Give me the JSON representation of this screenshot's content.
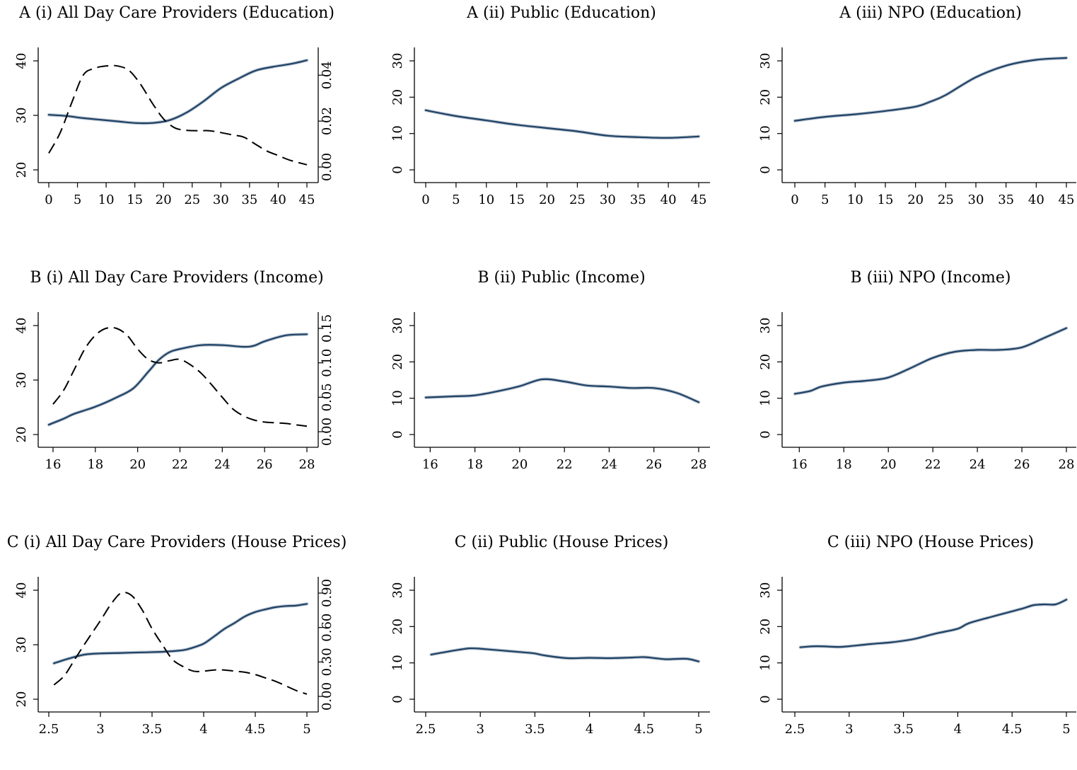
{
  "chart_data": [
    {
      "panel": "A-i",
      "type": "line",
      "title": "A (i) All Day Care Providers (Education)",
      "xlim": [
        0,
        45
      ],
      "ylim": [
        20,
        40
      ],
      "y2lim": [
        0,
        0.045
      ],
      "xticks": [
        "0",
        "5",
        "10",
        "15",
        "20",
        "25",
        "30",
        "35",
        "40",
        "45"
      ],
      "yticks": [
        "20",
        "30",
        "40"
      ],
      "y2ticks": [
        "0.00",
        "0.02",
        "0.04"
      ],
      "series": [
        {
          "style": "solid",
          "axis": "left",
          "x": [
            0,
            3,
            6,
            9,
            12,
            15,
            18,
            21,
            24,
            27,
            30,
            33,
            36,
            39,
            42,
            45
          ],
          "y": [
            30.1,
            29.9,
            29.5,
            29.2,
            28.9,
            28.6,
            28.6,
            29.1,
            30.5,
            32.6,
            35.0,
            36.7,
            38.2,
            38.9,
            39.4,
            40.1
          ]
        },
        {
          "style": "dashed",
          "axis": "right",
          "x": [
            0,
            2,
            4,
            6,
            8,
            10,
            12,
            14,
            16,
            18,
            20,
            22,
            24,
            26,
            28,
            30,
            32,
            34,
            36,
            38,
            40,
            42,
            45
          ],
          "y": [
            0.006,
            0.015,
            0.028,
            0.04,
            0.043,
            0.044,
            0.044,
            0.042,
            0.036,
            0.028,
            0.021,
            0.017,
            0.016,
            0.0158,
            0.0158,
            0.015,
            0.014,
            0.013,
            0.01,
            0.007,
            0.005,
            0.003,
            0.001
          ]
        }
      ]
    },
    {
      "panel": "A-ii",
      "type": "line",
      "title": "A (ii) Public (Education)",
      "xlim": [
        0,
        45
      ],
      "ylim": [
        0,
        30
      ],
      "xticks": [
        "0",
        "5",
        "10",
        "15",
        "20",
        "25",
        "30",
        "35",
        "40",
        "45"
      ],
      "yticks": [
        "0",
        "10",
        "20",
        "30"
      ],
      "series": [
        {
          "style": "solid",
          "x": [
            0,
            5,
            10,
            15,
            20,
            25,
            30,
            35,
            40,
            45
          ],
          "y": [
            16.4,
            14.8,
            13.6,
            12.4,
            11.5,
            10.6,
            9.4,
            9.0,
            8.8,
            9.2
          ]
        }
      ]
    },
    {
      "panel": "A-iii",
      "type": "line",
      "title": "A (iii) NPO (Education)",
      "xlim": [
        0,
        45
      ],
      "ylim": [
        0,
        30
      ],
      "xticks": [
        "0",
        "5",
        "10",
        "15",
        "20",
        "25",
        "30",
        "35",
        "40",
        "45"
      ],
      "yticks": [
        "0",
        "10",
        "20",
        "30"
      ],
      "series": [
        {
          "style": "solid",
          "x": [
            0,
            5,
            10,
            15,
            20,
            22.5,
            25,
            30,
            35,
            40,
            45
          ],
          "y": [
            13.5,
            14.6,
            15.3,
            16.2,
            17.4,
            18.8,
            20.6,
            25.5,
            28.7,
            30.3,
            30.8
          ]
        }
      ]
    },
    {
      "panel": "B-i",
      "type": "line",
      "title": "B (i) All Day Care Providers (Income)",
      "xlim": [
        15.8,
        28
      ],
      "ylim": [
        20,
        40
      ],
      "y2lim": [
        0,
        0.15
      ],
      "xticks": [
        "16",
        "18",
        "20",
        "22",
        "24",
        "26",
        "28"
      ],
      "yticks": [
        "20",
        "30",
        "40"
      ],
      "y2ticks": [
        "0.00",
        "0.05",
        "0.10",
        "0.15"
      ],
      "series": [
        {
          "style": "solid",
          "axis": "left",
          "x": [
            15.8,
            16.5,
            17,
            18,
            19,
            19.8,
            20.5,
            21,
            21.5,
            22,
            23,
            24,
            25,
            25.5,
            26,
            27,
            28
          ],
          "y": [
            21.8,
            22.9,
            23.8,
            25.1,
            26.8,
            28.5,
            31.5,
            33.7,
            35.1,
            35.7,
            36.4,
            36.4,
            36.1,
            36.3,
            37.1,
            38.2,
            38.4
          ]
        },
        {
          "style": "dashed",
          "axis": "right",
          "x": [
            16,
            16.5,
            17,
            17.5,
            18,
            18.5,
            19,
            19.5,
            20,
            20.5,
            21,
            21.5,
            22,
            22.5,
            23,
            23.5,
            24,
            24.5,
            25,
            25.5,
            26,
            26.5,
            27,
            27.5,
            28
          ],
          "y": [
            0.04,
            0.06,
            0.09,
            0.12,
            0.14,
            0.15,
            0.15,
            0.14,
            0.12,
            0.105,
            0.1,
            0.103,
            0.105,
            0.097,
            0.085,
            0.068,
            0.05,
            0.033,
            0.023,
            0.017,
            0.014,
            0.013,
            0.012,
            0.01,
            0.008
          ]
        }
      ]
    },
    {
      "panel": "B-ii",
      "type": "line",
      "title": "B (ii) Public (Income)",
      "xlim": [
        15.8,
        28
      ],
      "ylim": [
        0,
        30
      ],
      "xticks": [
        "16",
        "18",
        "20",
        "22",
        "24",
        "26",
        "28"
      ],
      "yticks": [
        "0",
        "10",
        "20",
        "30"
      ],
      "series": [
        {
          "style": "solid",
          "x": [
            15.8,
            17,
            18,
            19,
            20,
            21,
            22,
            23,
            24,
            25,
            26,
            27,
            28
          ],
          "y": [
            10.2,
            10.5,
            10.8,
            11.9,
            13.3,
            15.2,
            14.6,
            13.5,
            13.2,
            12.8,
            12.8,
            11.5,
            8.9
          ]
        }
      ]
    },
    {
      "panel": "B-iii",
      "type": "line",
      "title": "B (iii) NPO (Income)",
      "xlim": [
        15.8,
        28
      ],
      "ylim": [
        0,
        30
      ],
      "xticks": [
        "16",
        "18",
        "20",
        "22",
        "24",
        "26",
        "28"
      ],
      "yticks": [
        "0",
        "10",
        "20",
        "30"
      ],
      "series": [
        {
          "style": "solid",
          "x": [
            15.8,
            16.5,
            17,
            18,
            19,
            20,
            21,
            22,
            23,
            24,
            25,
            26,
            27,
            28
          ],
          "y": [
            11.2,
            12.0,
            13.2,
            14.3,
            14.8,
            15.7,
            18.3,
            21.1,
            22.8,
            23.3,
            23.3,
            24.0,
            26.6,
            29.3
          ]
        }
      ]
    },
    {
      "panel": "C-i",
      "type": "line",
      "title": "C (i) All Day Care Providers (House Prices)",
      "xlim": [
        2.5,
        5
      ],
      "ylim": [
        20,
        40
      ],
      "y2lim": [
        0,
        0.9
      ],
      "xticks": [
        "2.5",
        "3",
        "3.5",
        "4",
        "4.5",
        "5"
      ],
      "yticks": [
        "20",
        "30",
        "40"
      ],
      "y2ticks": [
        "0.00",
        "0.30",
        "0.60",
        "0.90"
      ],
      "series": [
        {
          "style": "solid",
          "axis": "left",
          "x": [
            2.55,
            2.7,
            2.85,
            3,
            3.2,
            3.4,
            3.6,
            3.8,
            3.9,
            4,
            4.1,
            4.2,
            4.3,
            4.4,
            4.5,
            4.6,
            4.7,
            4.8,
            4.9,
            5
          ],
          "y": [
            26.6,
            27.5,
            28.2,
            28.4,
            28.5,
            28.6,
            28.7,
            29.0,
            29.5,
            30.2,
            31.5,
            32.9,
            34.0,
            35.2,
            36.0,
            36.5,
            36.9,
            37.1,
            37.2,
            37.5
          ]
        },
        {
          "style": "dashed",
          "axis": "right",
          "x": [
            2.55,
            2.65,
            2.75,
            2.85,
            3,
            3.1,
            3.2,
            3.3,
            3.4,
            3.5,
            3.6,
            3.7,
            3.8,
            3.9,
            4,
            4.1,
            4.2,
            4.3,
            4.4,
            4.5,
            4.6,
            4.7,
            4.8,
            4.9,
            5
          ],
          "y": [
            0.1,
            0.18,
            0.32,
            0.46,
            0.66,
            0.8,
            0.9,
            0.88,
            0.76,
            0.59,
            0.45,
            0.32,
            0.26,
            0.22,
            0.22,
            0.23,
            0.23,
            0.22,
            0.21,
            0.19,
            0.16,
            0.13,
            0.09,
            0.05,
            0.02
          ]
        }
      ]
    },
    {
      "panel": "C-ii",
      "type": "line",
      "title": "C (ii) Public (House Prices)",
      "xlim": [
        2.5,
        5
      ],
      "ylim": [
        0,
        30
      ],
      "xticks": [
        "2.5",
        "3",
        "3.5",
        "4",
        "4.5",
        "5"
      ],
      "yticks": [
        "0",
        "10",
        "20",
        "30"
      ],
      "series": [
        {
          "style": "solid",
          "x": [
            2.55,
            2.7,
            2.8,
            2.9,
            3,
            3.2,
            3.4,
            3.5,
            3.6,
            3.8,
            4,
            4.2,
            4.4,
            4.5,
            4.6,
            4.7,
            4.8,
            4.9,
            5
          ],
          "y": [
            12.3,
            13.1,
            13.6,
            14.0,
            13.9,
            13.4,
            12.9,
            12.6,
            12.0,
            11.3,
            11.4,
            11.3,
            11.5,
            11.6,
            11.3,
            11.0,
            11.1,
            11.1,
            10.4
          ]
        }
      ]
    },
    {
      "panel": "C-iii",
      "type": "line",
      "title": "C (iii) NPO (House Prices)",
      "xlim": [
        2.5,
        5
      ],
      "ylim": [
        0,
        30
      ],
      "xticks": [
        "2.5",
        "3",
        "3.5",
        "4",
        "4.5",
        "5"
      ],
      "yticks": [
        "0",
        "10",
        "20",
        "30"
      ],
      "series": [
        {
          "style": "solid",
          "x": [
            2.55,
            2.7,
            2.9,
            3,
            3.2,
            3.4,
            3.6,
            3.8,
            4,
            4.1,
            4.3,
            4.5,
            4.6,
            4.7,
            4.8,
            4.9,
            5
          ],
          "y": [
            14.3,
            14.6,
            14.4,
            14.6,
            15.2,
            15.7,
            16.6,
            18.1,
            19.4,
            20.9,
            22.6,
            24.2,
            25.0,
            25.9,
            26.1,
            26.1,
            27.4
          ]
        }
      ]
    }
  ]
}
